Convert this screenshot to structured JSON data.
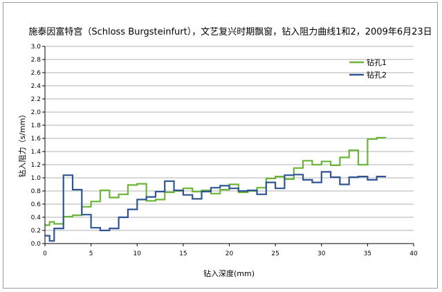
{
  "chart_data": {
    "type": "line",
    "title": "施泰因富特宫（Schloss Burgsteinfurt），文艺复兴时期飘窗，钻入阻力曲线1和2，2009年6月23日",
    "xlabel": "钻入深度(mm)",
    "ylabel": "钻入阻力（s/mm）",
    "xlim": [
      0,
      40
    ],
    "ylim": [
      0,
      3.0
    ],
    "x_ticks": [
      "0",
      "5",
      "10",
      "15",
      "20",
      "25",
      "30",
      "35",
      "40"
    ],
    "y_ticks": [
      "0.0",
      "0.2",
      "0.4",
      "0.6",
      "0.8",
      "1.0",
      "1.2",
      "1.4",
      "1.6",
      "1.8",
      "2.0",
      "2.2",
      "2.4",
      "2.6",
      "2.8",
      "3.0"
    ],
    "grid": true,
    "legend_position": "top-right",
    "series": [
      {
        "name": "钻孔1",
        "color": "#6ab536",
        "points": [
          [
            0,
            0.28
          ],
          [
            0.5,
            0.28
          ],
          [
            0.5,
            0.33
          ],
          [
            1,
            0.33
          ],
          [
            1,
            0.3
          ],
          [
            2,
            0.3
          ],
          [
            2,
            0.41
          ],
          [
            3,
            0.41
          ],
          [
            3,
            0.43
          ],
          [
            4,
            0.43
          ],
          [
            4,
            0.56
          ],
          [
            5,
            0.56
          ],
          [
            5,
            0.64
          ],
          [
            6,
            0.64
          ],
          [
            6,
            0.81
          ],
          [
            7,
            0.81
          ],
          [
            7,
            0.7
          ],
          [
            8,
            0.7
          ],
          [
            8,
            0.75
          ],
          [
            9,
            0.75
          ],
          [
            9,
            0.89
          ],
          [
            10,
            0.89
          ],
          [
            10,
            0.91
          ],
          [
            11,
            0.91
          ],
          [
            11,
            0.65
          ],
          [
            12,
            0.65
          ],
          [
            12,
            0.67
          ],
          [
            13,
            0.67
          ],
          [
            13,
            0.78
          ],
          [
            14,
            0.78
          ],
          [
            14,
            0.8
          ],
          [
            15,
            0.8
          ],
          [
            15,
            0.84
          ],
          [
            16,
            0.84
          ],
          [
            16,
            0.79
          ],
          [
            17,
            0.79
          ],
          [
            17,
            0.81
          ],
          [
            18,
            0.81
          ],
          [
            18,
            0.76
          ],
          [
            19,
            0.76
          ],
          [
            19,
            0.82
          ],
          [
            20,
            0.82
          ],
          [
            20,
            0.9
          ],
          [
            21,
            0.9
          ],
          [
            21,
            0.78
          ],
          [
            22,
            0.78
          ],
          [
            22,
            0.8
          ],
          [
            23,
            0.8
          ],
          [
            23,
            0.85
          ],
          [
            24,
            0.85
          ],
          [
            24,
            0.99
          ],
          [
            25,
            0.99
          ],
          [
            25,
            1.02
          ],
          [
            26,
            1.02
          ],
          [
            26,
            0.98
          ],
          [
            27,
            0.98
          ],
          [
            27,
            1.15
          ],
          [
            28,
            1.15
          ],
          [
            28,
            1.26
          ],
          [
            29,
            1.26
          ],
          [
            29,
            1.2
          ],
          [
            30,
            1.2
          ],
          [
            30,
            1.25
          ],
          [
            31,
            1.25
          ],
          [
            31,
            1.19
          ],
          [
            32,
            1.19
          ],
          [
            32,
            1.31
          ],
          [
            33,
            1.31
          ],
          [
            33,
            1.42
          ],
          [
            34,
            1.42
          ],
          [
            34,
            1.2
          ],
          [
            35,
            1.2
          ],
          [
            35,
            1.59
          ],
          [
            36,
            1.59
          ],
          [
            36,
            1.61
          ],
          [
            37,
            1.61
          ]
        ]
      },
      {
        "name": "钻孔2",
        "color": "#2f5496",
        "points": [
          [
            0,
            0.12
          ],
          [
            0.5,
            0.12
          ],
          [
            0.5,
            0.04
          ],
          [
            1,
            0.04
          ],
          [
            1,
            0.23
          ],
          [
            2,
            0.23
          ],
          [
            2,
            1.04
          ],
          [
            3,
            1.04
          ],
          [
            3,
            0.82
          ],
          [
            4,
            0.82
          ],
          [
            4,
            0.44
          ],
          [
            5,
            0.44
          ],
          [
            5,
            0.24
          ],
          [
            6,
            0.24
          ],
          [
            6,
            0.2
          ],
          [
            7,
            0.2
          ],
          [
            7,
            0.23
          ],
          [
            8,
            0.23
          ],
          [
            8,
            0.4
          ],
          [
            9,
            0.4
          ],
          [
            9,
            0.52
          ],
          [
            10,
            0.52
          ],
          [
            10,
            0.67
          ],
          [
            11,
            0.67
          ],
          [
            11,
            0.71
          ],
          [
            12,
            0.71
          ],
          [
            12,
            0.79
          ],
          [
            13,
            0.79
          ],
          [
            13,
            0.95
          ],
          [
            14,
            0.95
          ],
          [
            14,
            0.81
          ],
          [
            15,
            0.81
          ],
          [
            15,
            0.74
          ],
          [
            16,
            0.74
          ],
          [
            16,
            0.68
          ],
          [
            17,
            0.68
          ],
          [
            17,
            0.79
          ],
          [
            18,
            0.79
          ],
          [
            18,
            0.85
          ],
          [
            19,
            0.85
          ],
          [
            19,
            0.88
          ],
          [
            20,
            0.88
          ],
          [
            20,
            0.84
          ],
          [
            21,
            0.84
          ],
          [
            21,
            0.8
          ],
          [
            22,
            0.8
          ],
          [
            22,
            0.81
          ],
          [
            23,
            0.81
          ],
          [
            23,
            0.75
          ],
          [
            24,
            0.75
          ],
          [
            24,
            0.93
          ],
          [
            25,
            0.93
          ],
          [
            25,
            0.84
          ],
          [
            26,
            0.84
          ],
          [
            26,
            1.04
          ],
          [
            27,
            1.04
          ],
          [
            27,
            1.05
          ],
          [
            28,
            1.05
          ],
          [
            28,
            0.97
          ],
          [
            29,
            0.97
          ],
          [
            29,
            0.93
          ],
          [
            30,
            0.93
          ],
          [
            30,
            1.09
          ],
          [
            31,
            1.09
          ],
          [
            31,
            1.01
          ],
          [
            32,
            1.01
          ],
          [
            32,
            0.9
          ],
          [
            33,
            0.9
          ],
          [
            33,
            1.01
          ],
          [
            34,
            1.01
          ],
          [
            34,
            1.02
          ],
          [
            35,
            1.02
          ],
          [
            35,
            0.97
          ],
          [
            36,
            0.97
          ],
          [
            36,
            1.02
          ],
          [
            37,
            1.02
          ]
        ]
      }
    ]
  }
}
